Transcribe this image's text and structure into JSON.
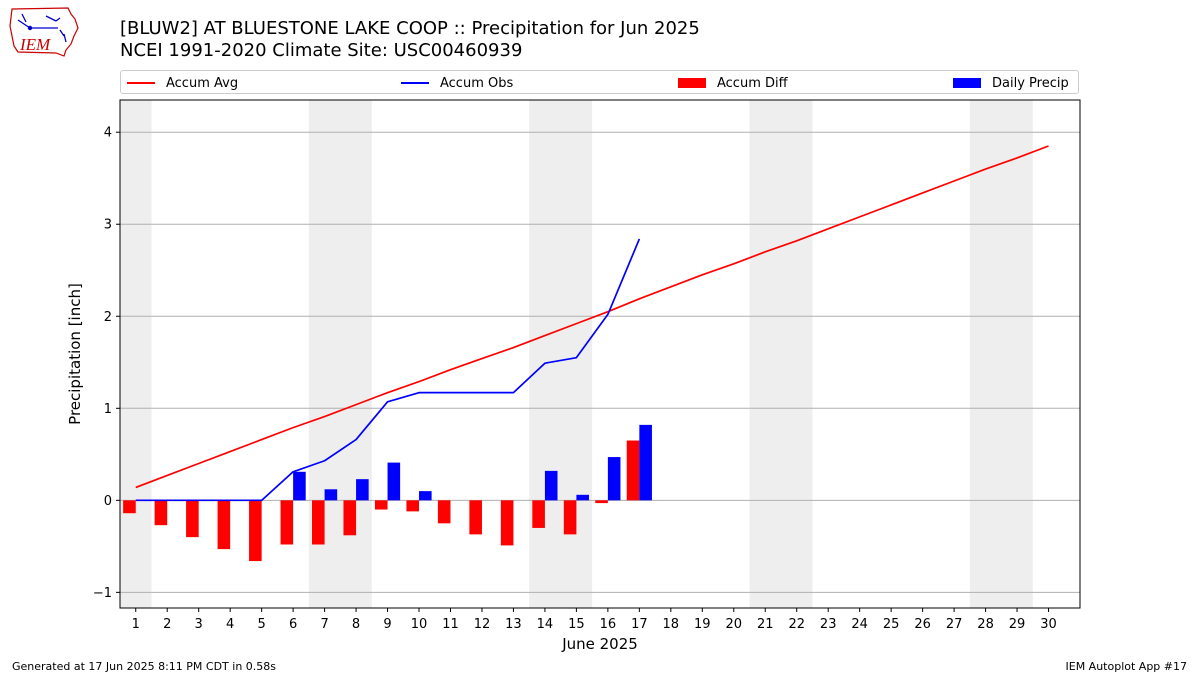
{
  "header": {
    "logo_text": "IEM",
    "title_line1": "[BLUW2] AT BLUESTONE LAKE COOP :: Precipitation for Jun 2025",
    "title_line2": "NCEI 1991-2020 Climate Site: USC00460939"
  },
  "footer": {
    "left": "Generated at 17 Jun 2025 8:11 PM CDT in 0.58s",
    "right": "IEM Autoplot App #17"
  },
  "colors": {
    "accum_avg": "#ff0000",
    "accum_obs": "#0000ff",
    "accum_diff": "#ff0000",
    "daily_precip": "#0000ff",
    "weekend_shading": "#eeeeee",
    "grid": "#b0b0b0"
  },
  "chart_data": {
    "type": "bar",
    "title": "[BLUW2] AT BLUESTONE LAKE COOP :: Precipitation for Jun 2025",
    "subtitle": "NCEI 1991-2020 Climate Site: USC00460939",
    "xlabel": "June 2025",
    "ylabel": "Precipitation [inch]",
    "xlim": [
      0.5,
      31.0
    ],
    "ylim": [
      -1.17,
      4.35
    ],
    "yticks": [
      -1,
      0,
      1,
      2,
      3,
      4
    ],
    "xticks": [
      "1",
      "2",
      "3",
      "4",
      "5",
      "6",
      "7",
      "8",
      "9",
      "10",
      "11",
      "12",
      "13",
      "14",
      "15",
      "16",
      "17",
      "18",
      "19",
      "20",
      "21",
      "22",
      "23",
      "24",
      "25",
      "26",
      "27",
      "28",
      "29",
      "30"
    ],
    "grid": "horizontal",
    "legend_placement": "top, above plot",
    "weekend_shading": [
      [
        0.5,
        1.5
      ],
      [
        6.5,
        8.5
      ],
      [
        13.5,
        15.5
      ],
      [
        20.5,
        22.5
      ],
      [
        27.5,
        29.5
      ]
    ],
    "series": [
      {
        "name": "Accum Avg",
        "kind": "line",
        "x": [
          1,
          2,
          3,
          4,
          5,
          6,
          7,
          8,
          9,
          10,
          11,
          12,
          13,
          14,
          15,
          16,
          17,
          18,
          19,
          20,
          21,
          22,
          23,
          24,
          25,
          26,
          27,
          28,
          29,
          30
        ],
        "values": [
          0.14,
          0.27,
          0.4,
          0.53,
          0.66,
          0.79,
          0.91,
          1.04,
          1.17,
          1.29,
          1.42,
          1.54,
          1.66,
          1.79,
          1.92,
          2.05,
          2.19,
          2.32,
          2.45,
          2.57,
          2.7,
          2.82,
          2.95,
          3.08,
          3.21,
          3.34,
          3.47,
          3.6,
          3.72,
          3.85
        ]
      },
      {
        "name": "Accum Obs",
        "kind": "line",
        "x": [
          1,
          2,
          3,
          4,
          5,
          6,
          7,
          8,
          9,
          10,
          11,
          12,
          13,
          14,
          15,
          16,
          17
        ],
        "values": [
          0.0,
          0.0,
          0.0,
          0.0,
          0.0,
          0.31,
          0.43,
          0.66,
          1.07,
          1.17,
          1.17,
          1.17,
          1.17,
          1.49,
          1.55,
          2.02,
          2.84
        ]
      },
      {
        "name": "Accum Diff",
        "kind": "bar",
        "x": [
          1,
          2,
          3,
          4,
          5,
          6,
          7,
          8,
          9,
          10,
          11,
          12,
          13,
          14,
          15,
          16,
          17
        ],
        "values": [
          -0.14,
          -0.27,
          -0.4,
          -0.53,
          -0.66,
          -0.48,
          -0.48,
          -0.38,
          -0.1,
          -0.12,
          -0.25,
          -0.37,
          -0.49,
          -0.3,
          -0.37,
          -0.03,
          0.65
        ]
      },
      {
        "name": "Daily Precip",
        "kind": "bar",
        "x": [
          6,
          7,
          8,
          9,
          10,
          14,
          15,
          16,
          17
        ],
        "values": [
          0.31,
          0.12,
          0.23,
          0.41,
          0.1,
          0.32,
          0.06,
          0.47,
          0.82
        ]
      }
    ]
  }
}
